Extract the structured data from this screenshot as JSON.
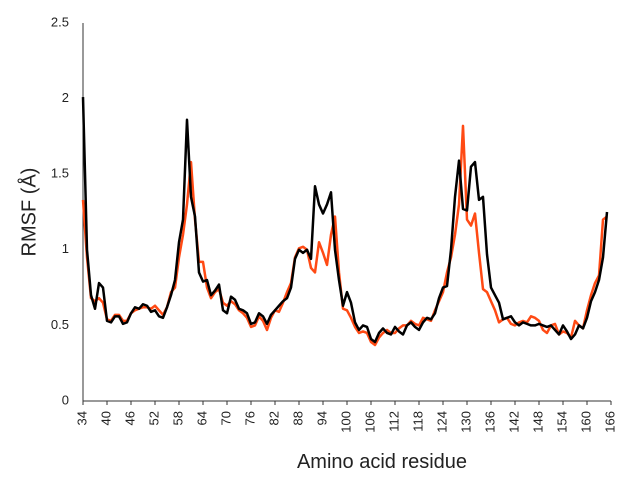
{
  "chart_data": {
    "type": "line",
    "x_label": "Amino acid residue",
    "y_label": "RMSF (Å)",
    "x": [
      34,
      35,
      36,
      37,
      38,
      39,
      40,
      41,
      42,
      43,
      44,
      45,
      46,
      47,
      48,
      49,
      50,
      51,
      52,
      53,
      54,
      55,
      56,
      57,
      58,
      59,
      60,
      61,
      62,
      63,
      64,
      65,
      66,
      67,
      68,
      69,
      70,
      71,
      72,
      73,
      74,
      75,
      76,
      77,
      78,
      79,
      80,
      81,
      82,
      83,
      84,
      85,
      86,
      87,
      88,
      89,
      90,
      91,
      92,
      93,
      94,
      95,
      96,
      97,
      98,
      99,
      100,
      101,
      102,
      103,
      104,
      105,
      106,
      107,
      108,
      109,
      110,
      111,
      112,
      113,
      114,
      115,
      116,
      117,
      118,
      119,
      120,
      121,
      122,
      123,
      124,
      125,
      126,
      127,
      128,
      129,
      130,
      131,
      132,
      133,
      134,
      135,
      136,
      137,
      138,
      139,
      140,
      141,
      142,
      143,
      144,
      145,
      146,
      147,
      148,
      149,
      150,
      151,
      152,
      153,
      154,
      155,
      156,
      157,
      158,
      159,
      160,
      161,
      162,
      163,
      164,
      165
    ],
    "series": [
      {
        "color": "#ff4a14",
        "values": [
          1.33,
          0.95,
          0.68,
          0.66,
          0.68,
          0.65,
          0.54,
          0.53,
          0.57,
          0.57,
          0.53,
          0.53,
          0.58,
          0.6,
          0.61,
          0.62,
          0.62,
          0.61,
          0.63,
          0.6,
          0.57,
          0.62,
          0.72,
          0.75,
          0.95,
          1.1,
          1.3,
          1.58,
          1.2,
          0.92,
          0.92,
          0.75,
          0.68,
          0.72,
          0.74,
          0.65,
          0.63,
          0.66,
          0.64,
          0.6,
          0.58,
          0.55,
          0.49,
          0.5,
          0.56,
          0.53,
          0.47,
          0.55,
          0.6,
          0.59,
          0.65,
          0.72,
          0.78,
          0.95,
          1.01,
          1.02,
          1.0,
          0.88,
          0.85,
          1.05,
          0.98,
          0.9,
          1.1,
          1.22,
          0.85,
          0.61,
          0.6,
          0.55,
          0.49,
          0.45,
          0.46,
          0.45,
          0.39,
          0.37,
          0.42,
          0.45,
          0.47,
          0.45,
          0.45,
          0.48,
          0.5,
          0.5,
          0.53,
          0.51,
          0.5,
          0.55,
          0.54,
          0.53,
          0.6,
          0.66,
          0.72,
          0.85,
          0.95,
          1.1,
          1.3,
          1.82,
          1.2,
          1.16,
          1.24,
          0.98,
          0.74,
          0.72,
          0.66,
          0.6,
          0.52,
          0.54,
          0.55,
          0.51,
          0.5,
          0.52,
          0.53,
          0.52,
          0.56,
          0.55,
          0.53,
          0.47,
          0.45,
          0.5,
          0.51,
          0.44,
          0.46,
          0.45,
          0.42,
          0.53,
          0.5,
          0.48,
          0.6,
          0.7,
          0.78,
          0.83,
          1.2,
          1.22
        ]
      },
      {
        "color": "#000000",
        "values": [
          2.01,
          1.0,
          0.7,
          0.61,
          0.78,
          0.75,
          0.53,
          0.52,
          0.56,
          0.56,
          0.51,
          0.52,
          0.58,
          0.62,
          0.61,
          0.64,
          0.63,
          0.59,
          0.6,
          0.56,
          0.55,
          0.62,
          0.7,
          0.8,
          1.05,
          1.2,
          1.86,
          1.35,
          1.22,
          0.85,
          0.79,
          0.8,
          0.7,
          0.73,
          0.77,
          0.6,
          0.58,
          0.69,
          0.67,
          0.61,
          0.6,
          0.58,
          0.51,
          0.52,
          0.58,
          0.56,
          0.51,
          0.57,
          0.6,
          0.63,
          0.66,
          0.68,
          0.75,
          0.94,
          1.0,
          0.98,
          1.0,
          0.94,
          1.42,
          1.3,
          1.24,
          1.3,
          1.38,
          1.0,
          0.8,
          0.63,
          0.72,
          0.65,
          0.52,
          0.47,
          0.5,
          0.49,
          0.41,
          0.39,
          0.45,
          0.48,
          0.45,
          0.44,
          0.49,
          0.46,
          0.44,
          0.5,
          0.52,
          0.49,
          0.47,
          0.52,
          0.55,
          0.54,
          0.58,
          0.68,
          0.75,
          0.76,
          1.0,
          1.35,
          1.59,
          1.27,
          1.26,
          1.55,
          1.58,
          1.33,
          1.35,
          0.97,
          0.75,
          0.7,
          0.65,
          0.54,
          0.55,
          0.56,
          0.52,
          0.5,
          0.52,
          0.51,
          0.5,
          0.5,
          0.51,
          0.5,
          0.49,
          0.5,
          0.47,
          0.44,
          0.5,
          0.46,
          0.41,
          0.44,
          0.5,
          0.48,
          0.55,
          0.66,
          0.72,
          0.8,
          0.95,
          1.25
        ]
      }
    ],
    "xlim": [
      34,
      166
    ],
    "xticks": [
      34,
      40,
      46,
      52,
      58,
      64,
      70,
      76,
      82,
      88,
      94,
      100,
      106,
      112,
      118,
      124,
      130,
      136,
      142,
      148,
      154,
      160,
      166
    ],
    "ylim": [
      0,
      2.5
    ],
    "yticks": [
      0,
      0.5,
      1,
      1.5,
      2,
      2.5
    ],
    "grid": false
  }
}
